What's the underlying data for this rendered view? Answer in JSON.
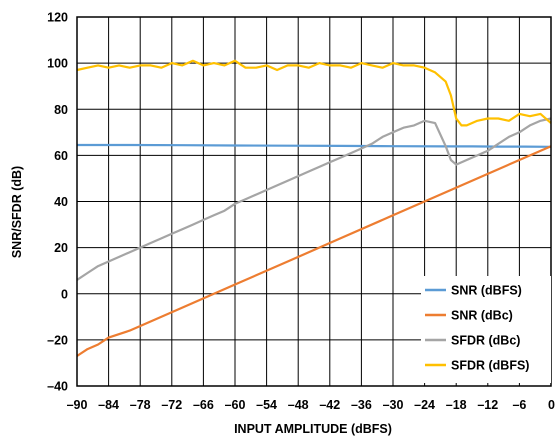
{
  "chart_data": {
    "type": "line",
    "title": "",
    "xlabel": "INPUT AMPLITUDE (dBFS)",
    "ylabel": "SNR/SFDR (dB)",
    "xlim": [
      -90,
      0
    ],
    "ylim": [
      -40,
      120
    ],
    "x_ticks": [
      -90,
      -84,
      -78,
      -72,
      -66,
      -60,
      -54,
      -48,
      -42,
      -36,
      -30,
      -24,
      -18,
      -12,
      -6,
      0
    ],
    "x_tick_labels": [
      "–90",
      "–84",
      "–78",
      "–72",
      "–66",
      "–60",
      "–54",
      "–48",
      "–42",
      "–36",
      "–30",
      "–24",
      "–18",
      "–12",
      "–6",
      "0"
    ],
    "y_ticks": [
      -40,
      -20,
      0,
      20,
      40,
      60,
      80,
      100,
      120
    ],
    "y_tick_labels": [
      "–40",
      "–20",
      "0",
      "20",
      "40",
      "60",
      "80",
      "100",
      "120"
    ],
    "grid": true,
    "legend_position": "bottom-right",
    "series": [
      {
        "name": "SNR (dBFS)",
        "color": "#5B9BD5",
        "x": [
          -90,
          -80,
          -70,
          -60,
          -50,
          -40,
          -30,
          -20,
          -15,
          -10,
          -5,
          0
        ],
        "y": [
          64.5,
          64.5,
          64.4,
          64.3,
          64.2,
          64.1,
          64.0,
          63.9,
          63.9,
          63.8,
          63.8,
          63.7
        ]
      },
      {
        "name": "SNR (dBc)",
        "color": "#ED7D31",
        "x": [
          -90,
          -88,
          -86,
          -84,
          -80,
          -70,
          -60,
          -50,
          -40,
          -30,
          -20,
          -10,
          0
        ],
        "y": [
          -27,
          -24,
          -22,
          -19,
          -16,
          -6,
          4,
          14,
          24,
          34,
          44,
          54,
          64
        ]
      },
      {
        "name": "SFDR (dBc)",
        "color": "#A5A5A5",
        "x": [
          -90,
          -88,
          -86,
          -84,
          -82,
          -80,
          -78,
          -76,
          -74,
          -72,
          -70,
          -68,
          -66,
          -64,
          -62,
          -60,
          -58,
          -56,
          -54,
          -52,
          -50,
          -48,
          -46,
          -44,
          -42,
          -40,
          -38,
          -36,
          -34,
          -32,
          -30,
          -28,
          -26,
          -24,
          -22,
          -20,
          -19,
          -18,
          -16,
          -14,
          -12,
          -10,
          -8,
          -6,
          -4,
          -2,
          0
        ],
        "y": [
          6,
          9,
          12,
          14,
          16,
          18,
          20,
          22,
          24,
          26,
          28,
          30,
          32,
          34,
          36,
          39,
          41,
          43,
          45,
          47,
          49,
          51,
          53,
          55,
          57,
          59,
          61,
          63,
          65,
          68,
          70,
          72,
          73,
          75,
          74,
          64,
          58,
          56,
          58,
          60,
          62,
          65,
          68,
          70,
          73,
          75,
          76
        ]
      },
      {
        "name": "SFDR (dBFS)",
        "color": "#FFC000",
        "x": [
          -90,
          -88,
          -86,
          -84,
          -82,
          -80,
          -78,
          -76,
          -74,
          -72,
          -70,
          -68,
          -66,
          -64,
          -62,
          -60,
          -58,
          -56,
          -54,
          -52,
          -50,
          -48,
          -46,
          -44,
          -42,
          -40,
          -38,
          -36,
          -34,
          -32,
          -30,
          -28,
          -26,
          -24,
          -22,
          -20,
          -19,
          -18,
          -17,
          -16,
          -14,
          -12,
          -10,
          -8,
          -6,
          -4,
          -2,
          0
        ],
        "y": [
          97,
          98,
          99,
          98,
          99,
          98,
          99,
          99,
          98,
          100,
          99,
          101,
          99,
          100,
          99,
          101,
          98,
          98,
          99,
          97,
          99,
          99,
          98,
          100,
          99,
          99,
          98,
          100,
          99,
          98,
          100,
          99,
          99,
          98,
          96,
          92,
          86,
          76,
          73,
          73,
          75,
          76,
          76,
          75,
          78,
          77,
          78,
          74
        ]
      }
    ]
  }
}
